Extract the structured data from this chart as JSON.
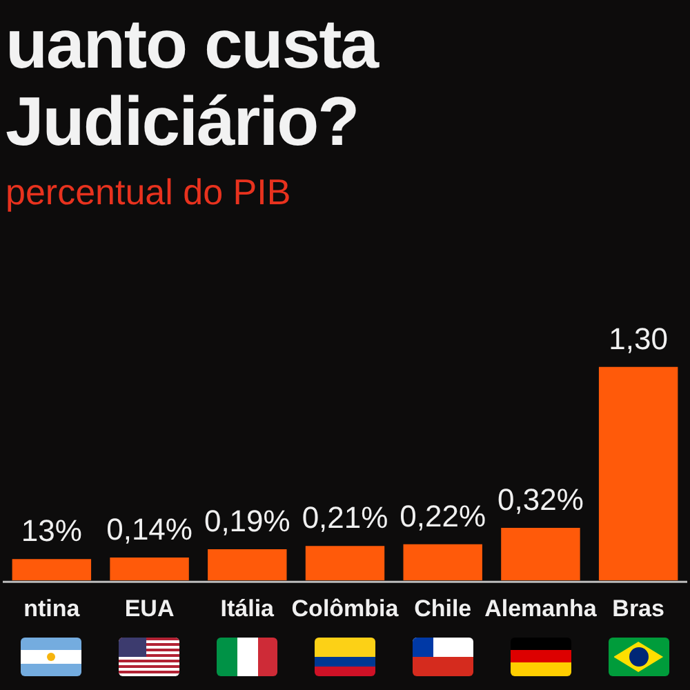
{
  "chart_data": {
    "type": "bar",
    "title": "uanto custa\nJudiciário?",
    "subtitle": "percentual do PIB",
    "categories": [
      "ntina",
      "EUA",
      "Itália",
      "Colômbia",
      "Chile",
      "Alemanha",
      "Bras"
    ],
    "values": [
      0.13,
      0.14,
      0.19,
      0.21,
      0.22,
      0.32,
      1.3
    ],
    "value_labels": [
      "13%",
      "0,14%",
      "0,19%",
      "0,21%",
      "0,22%",
      "0,32%",
      "1,30"
    ],
    "color": "#ff5a0a",
    "legend": false
  }
}
